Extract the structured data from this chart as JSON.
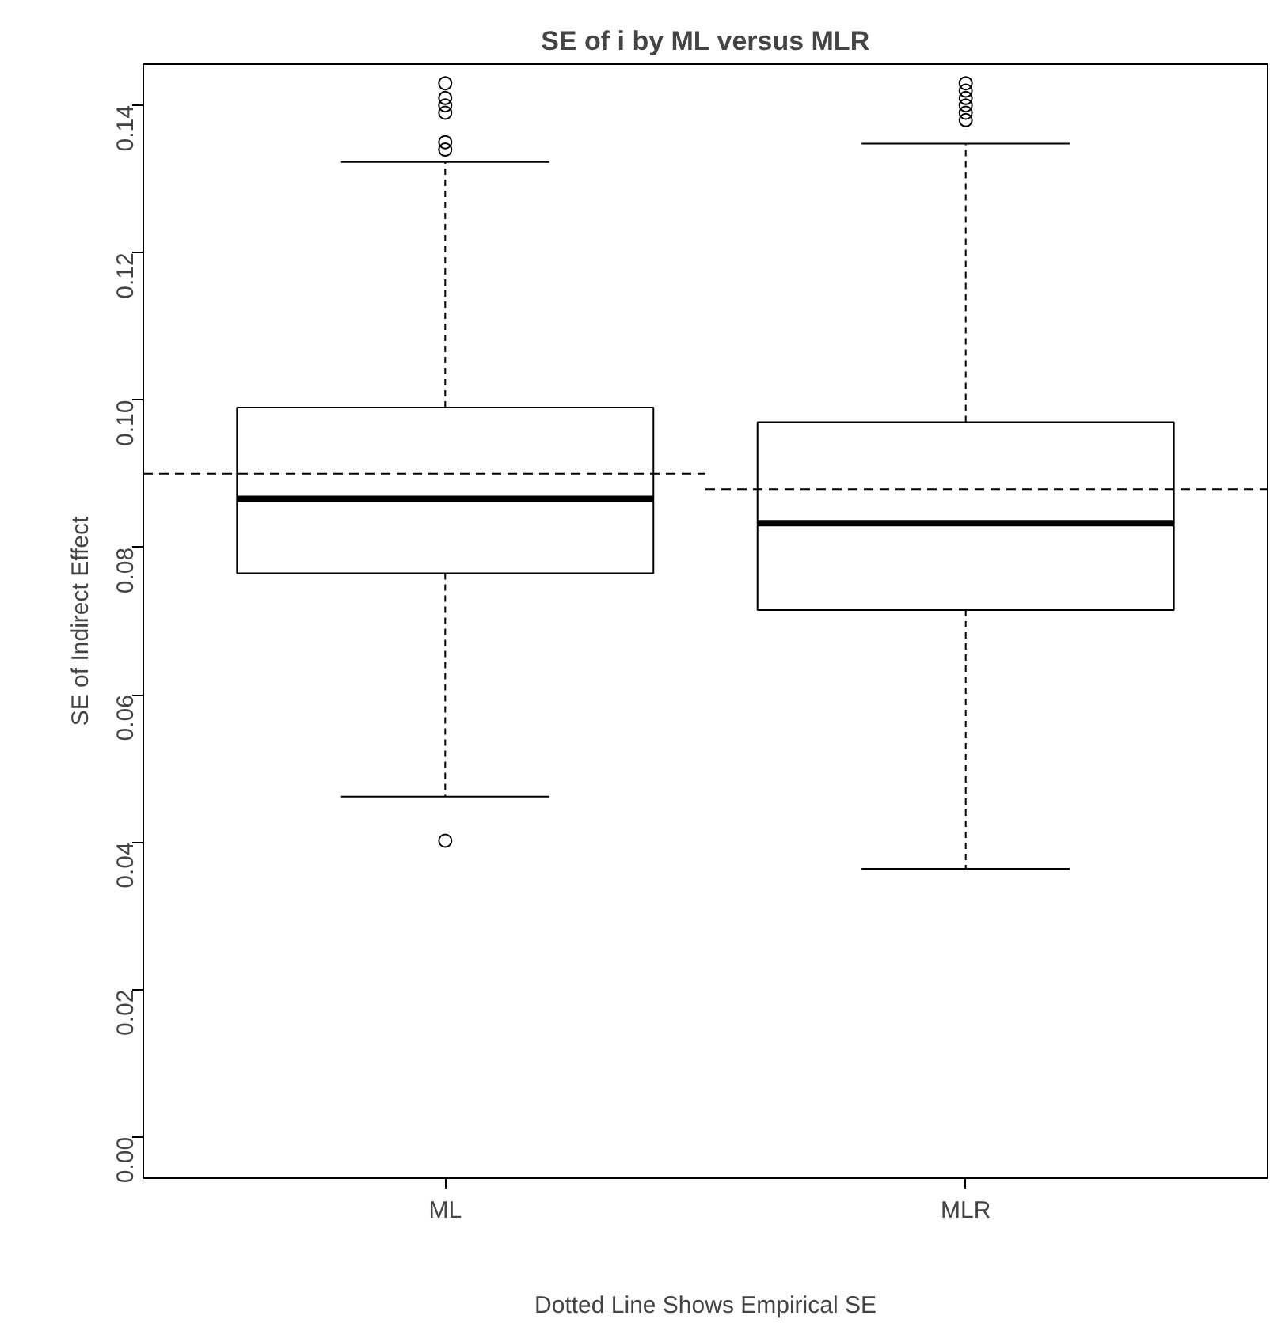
{
  "chart_data": {
    "type": "box",
    "title": "SE of i by ML versus MLR",
    "xlabel": "Dotted Line Shows Empirical SE",
    "ylabel": "SE of Indirect Effect",
    "categories": [
      "ML",
      "MLR"
    ],
    "boxes": [
      {
        "low": 0.0462,
        "q1": 0.0765,
        "median": 0.0866,
        "q3": 0.099,
        "high": 0.1323,
        "outliers": [
          0.0402,
          0.134,
          0.135,
          0.139,
          0.14,
          0.141,
          0.143
        ]
      },
      {
        "low": 0.0364,
        "q1": 0.0715,
        "median": 0.0833,
        "q3": 0.097,
        "high": 0.1348,
        "outliers": [
          0.138,
          0.139,
          0.14,
          0.141,
          0.142,
          0.143
        ]
      }
    ],
    "ylim": [
      -0.0056,
      0.1456
    ],
    "yticks": [
      {
        "value": 0,
        "label": "0.00"
      },
      {
        "value": 0.02,
        "label": "0.02"
      },
      {
        "value": 0.04,
        "label": "0.04"
      },
      {
        "value": 0.06,
        "label": "0.06"
      },
      {
        "value": 0.08,
        "label": "0.08"
      },
      {
        "value": 0.1,
        "label": "0.10"
      },
      {
        "value": 0.12,
        "label": "0.12"
      },
      {
        "value": 0.14,
        "label": "0.14"
      }
    ],
    "ref_lines": [
      {
        "axis": "y",
        "value": 0.09,
        "line_style": "dashed",
        "color": "#000000"
      },
      {
        "axis": "y",
        "value": 0.0879,
        "line_style": "dashed",
        "color": "#000000"
      }
    ],
    "grid": false,
    "marker": "circle"
  }
}
